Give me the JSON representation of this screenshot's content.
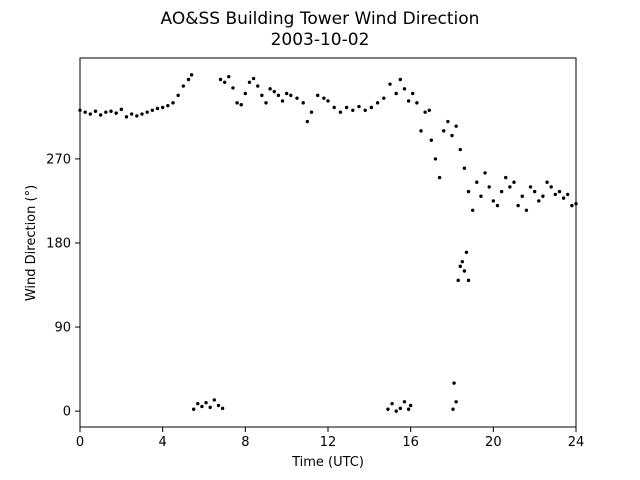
{
  "chart_data": {
    "type": "scatter",
    "title": "AO&SS Building Tower Wind Direction",
    "subtitle": "2003-10-02",
    "xlabel": "Time (UTC)",
    "ylabel": "Wind Direction (°)",
    "xlim": [
      0,
      24
    ],
    "ylim": [
      -17,
      378
    ],
    "xticks": [
      0,
      4,
      8,
      12,
      16,
      20,
      24
    ],
    "xtick_labels": [
      "0",
      "4",
      "8",
      "12",
      "16",
      "20",
      "24"
    ],
    "yticks": [
      0,
      90,
      180,
      270
    ],
    "ytick_labels": [
      "0",
      "90",
      "180",
      "270"
    ],
    "grid": false,
    "marker_color": "#000000",
    "series": [
      {
        "points": [
          [
            0.0,
            322
          ],
          [
            0.25,
            320
          ],
          [
            0.5,
            318
          ],
          [
            0.75,
            321
          ],
          [
            1.0,
            317
          ],
          [
            1.25,
            320
          ],
          [
            1.5,
            321
          ],
          [
            1.75,
            319
          ],
          [
            2.0,
            323
          ],
          [
            2.25,
            315
          ],
          [
            2.5,
            318
          ],
          [
            2.75,
            316
          ],
          [
            3.0,
            318
          ],
          [
            3.25,
            320
          ],
          [
            3.5,
            322
          ],
          [
            3.75,
            324
          ],
          [
            4.0,
            325
          ],
          [
            4.25,
            327
          ],
          [
            4.5,
            330
          ],
          [
            4.75,
            338
          ],
          [
            5.0,
            348
          ],
          [
            5.25,
            355
          ],
          [
            5.4,
            360
          ],
          [
            5.5,
            2
          ],
          [
            5.7,
            8
          ],
          [
            5.9,
            5
          ],
          [
            6.1,
            9
          ],
          [
            6.3,
            4
          ],
          [
            6.5,
            12
          ],
          [
            6.7,
            6
          ],
          [
            6.9,
            3
          ],
          [
            6.8,
            355
          ],
          [
            7.0,
            352
          ],
          [
            7.2,
            358
          ],
          [
            7.4,
            346
          ],
          [
            7.6,
            330
          ],
          [
            7.8,
            328
          ],
          [
            8.0,
            340
          ],
          [
            8.2,
            352
          ],
          [
            8.4,
            356
          ],
          [
            8.6,
            348
          ],
          [
            8.8,
            338
          ],
          [
            9.0,
            330
          ],
          [
            9.2,
            345
          ],
          [
            9.4,
            342
          ],
          [
            9.6,
            338
          ],
          [
            9.8,
            332
          ],
          [
            10.0,
            340
          ],
          [
            10.2,
            338
          ],
          [
            10.5,
            335
          ],
          [
            10.8,
            330
          ],
          [
            11.0,
            310
          ],
          [
            11.2,
            320
          ],
          [
            11.5,
            338
          ],
          [
            11.8,
            335
          ],
          [
            12.0,
            332
          ],
          [
            12.3,
            325
          ],
          [
            12.6,
            320
          ],
          [
            12.9,
            325
          ],
          [
            13.2,
            322
          ],
          [
            13.5,
            326
          ],
          [
            13.8,
            322
          ],
          [
            14.1,
            325
          ],
          [
            14.4,
            330
          ],
          [
            14.7,
            335
          ],
          [
            15.0,
            350
          ],
          [
            15.3,
            340
          ],
          [
            15.5,
            355
          ],
          [
            15.7,
            345
          ],
          [
            15.9,
            332
          ],
          [
            16.1,
            340
          ],
          [
            16.3,
            330
          ],
          [
            16.5,
            300
          ],
          [
            16.7,
            320
          ],
          [
            16.9,
            322
          ],
          [
            17.0,
            290
          ],
          [
            17.2,
            270
          ],
          [
            17.4,
            250
          ],
          [
            17.6,
            300
          ],
          [
            17.8,
            310
          ],
          [
            18.0,
            295
          ],
          [
            18.2,
            305
          ],
          [
            18.4,
            280
          ],
          [
            18.6,
            260
          ],
          [
            18.8,
            235
          ],
          [
            19.0,
            215
          ],
          [
            19.2,
            245
          ],
          [
            19.4,
            230
          ],
          [
            19.6,
            255
          ],
          [
            19.8,
            240
          ],
          [
            20.0,
            225
          ],
          [
            20.2,
            220
          ],
          [
            20.4,
            235
          ],
          [
            20.6,
            250
          ],
          [
            20.8,
            240
          ],
          [
            21.0,
            245
          ],
          [
            21.2,
            220
          ],
          [
            21.4,
            230
          ],
          [
            21.6,
            215
          ],
          [
            21.8,
            240
          ],
          [
            22.0,
            235
          ],
          [
            22.2,
            225
          ],
          [
            22.4,
            230
          ],
          [
            22.6,
            245
          ],
          [
            22.8,
            240
          ],
          [
            23.0,
            232
          ],
          [
            23.2,
            235
          ],
          [
            23.4,
            228
          ],
          [
            23.6,
            232
          ],
          [
            23.8,
            220
          ],
          [
            24.0,
            222
          ],
          [
            18.6,
            150
          ],
          [
            18.8,
            140
          ],
          [
            18.5,
            160
          ],
          [
            18.7,
            170
          ],
          [
            18.3,
            140
          ],
          [
            18.4,
            155
          ],
          [
            14.9,
            2
          ],
          [
            15.1,
            8
          ],
          [
            15.3,
            0
          ],
          [
            15.5,
            3
          ],
          [
            15.7,
            10
          ],
          [
            15.9,
            2
          ],
          [
            16.0,
            6
          ],
          [
            18.1,
            30
          ],
          [
            18.2,
            10
          ],
          [
            18.05,
            2
          ]
        ]
      }
    ]
  }
}
